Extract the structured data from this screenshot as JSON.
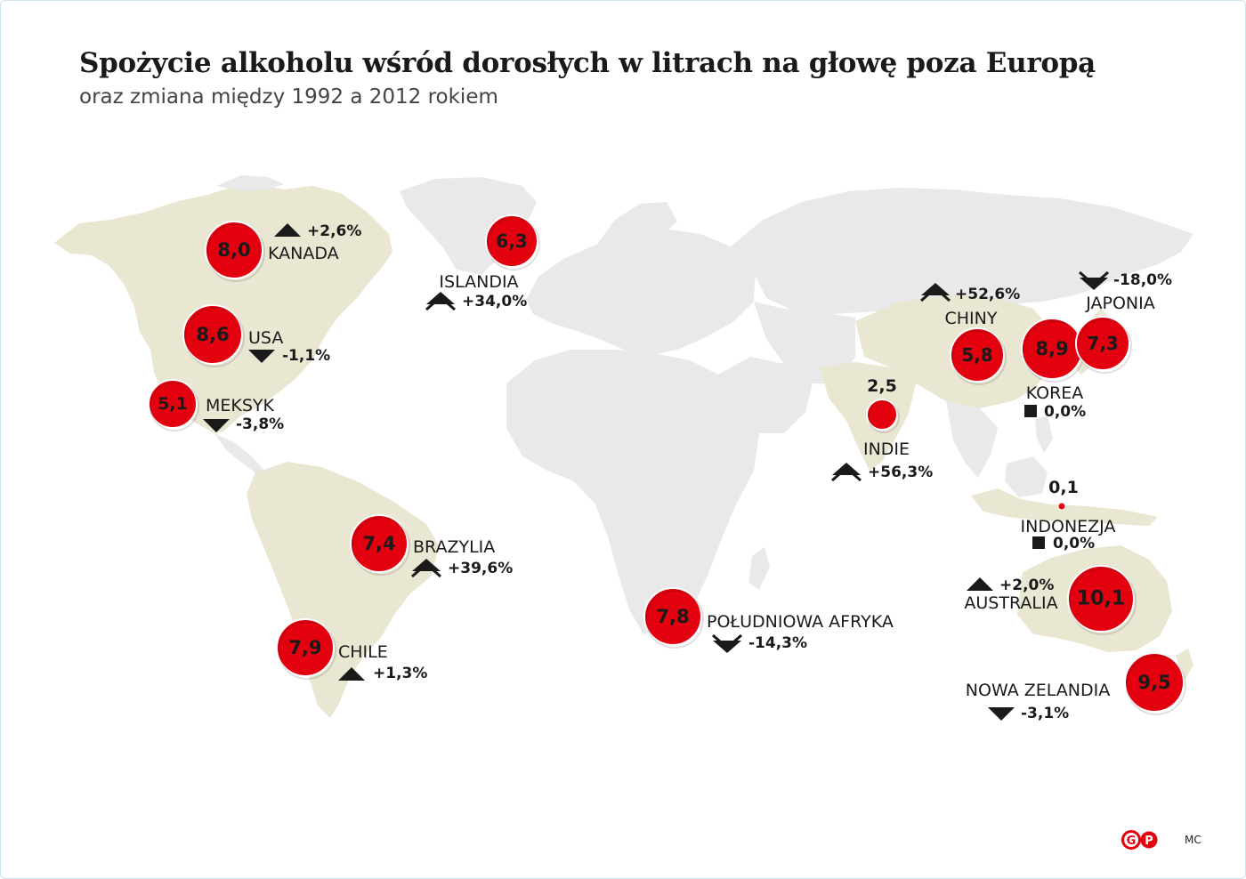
{
  "header": {
    "title": "Spożycie alkoholu wśród dorosłych w litrach na głowę  poza Europą",
    "subtitle": "oraz zmiana między 1992 a 2012 rokiem"
  },
  "colors": {
    "bubble": "#e3000f",
    "land": "#e9e9e9",
    "highlight": "#e9e6d2",
    "text": "#1a1a1a"
  },
  "countries": [
    {
      "id": "kanada",
      "name": "KANADA",
      "value": "8,0",
      "change": "+2,6%",
      "trend": "up"
    },
    {
      "id": "usa",
      "name": "USA",
      "value": "8,6",
      "change": "-1,1%",
      "trend": "down"
    },
    {
      "id": "meksyk",
      "name": "MEKSYK",
      "value": "5,1",
      "change": "-3,8%",
      "trend": "down"
    },
    {
      "id": "islandia",
      "name": "ISLANDIA",
      "value": "6,3",
      "change": "+34,0%",
      "trend": "up-double"
    },
    {
      "id": "brazylia",
      "name": "BRAZYLIA",
      "value": "7,4",
      "change": "+39,6%",
      "trend": "up-double"
    },
    {
      "id": "chile",
      "name": "CHILE",
      "value": "7,9",
      "change": "+1,3%",
      "trend": "up"
    },
    {
      "id": "poludniowa-afryka",
      "name": "POŁUDNIOWA AFRYKA",
      "value": "7,8",
      "change": "-14,3%",
      "trend": "down-double"
    },
    {
      "id": "indie",
      "name": "INDIE",
      "value": "2,5",
      "change": "+56,3%",
      "trend": "up-double"
    },
    {
      "id": "chiny",
      "name": "CHINY",
      "value": "5,8",
      "change": "+52,6%",
      "trend": "up-double"
    },
    {
      "id": "korea",
      "name": "KOREA",
      "value": "8,9",
      "change": "0,0%",
      "trend": "same"
    },
    {
      "id": "japonia",
      "name": "JAPONIA",
      "value": "7,3",
      "change": "-18,0%",
      "trend": "down-double"
    },
    {
      "id": "indonezja",
      "name": "INDONEZJA",
      "value": "0,1",
      "change": "0,0%",
      "trend": "same"
    },
    {
      "id": "australia",
      "name": "AUSTRALIA",
      "value": "10,1",
      "change": "+2,0%",
      "trend": "up"
    },
    {
      "id": "nowa-zelandia",
      "name": "NOWA ZELANDIA",
      "value": "9,5",
      "change": "-3,1%",
      "trend": "down"
    }
  ],
  "footer": {
    "author": "MC",
    "logo_letters": [
      "G",
      "P"
    ]
  }
}
